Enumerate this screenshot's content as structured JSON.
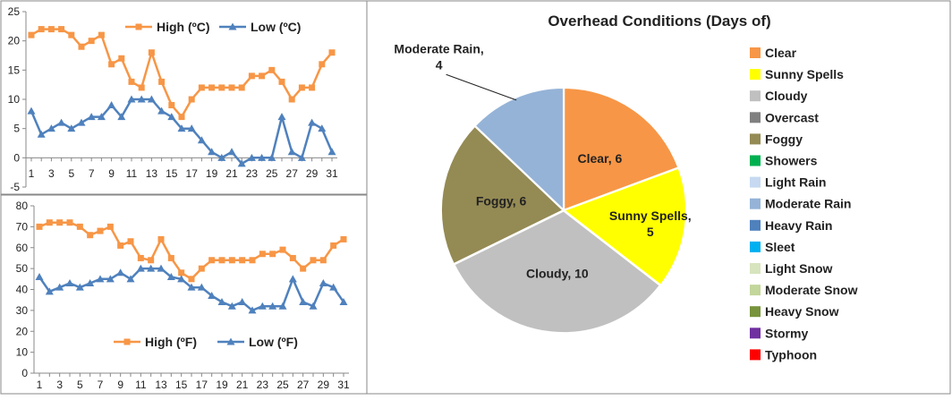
{
  "chart_data": [
    {
      "type": "line",
      "title": "",
      "xlabel": "",
      "ylabel": "",
      "x": [
        1,
        2,
        3,
        4,
        5,
        6,
        7,
        8,
        9,
        10,
        11,
        12,
        13,
        14,
        15,
        16,
        17,
        18,
        19,
        20,
        21,
        22,
        23,
        24,
        25,
        26,
        27,
        28,
        29,
        30,
        31
      ],
      "x_tick_labels": [
        "1",
        "3",
        "5",
        "7",
        "9",
        "11",
        "13",
        "15",
        "17",
        "19",
        "21",
        "23",
        "25",
        "27",
        "29",
        "31"
      ],
      "ylim": [
        -5,
        25
      ],
      "y_ticks": [
        -5,
        0,
        5,
        10,
        15,
        20,
        25
      ],
      "legend_position": "top",
      "series": [
        {
          "name": "High (ºC)",
          "color": "#F79646",
          "marker": "square",
          "values": [
            21,
            22,
            22,
            22,
            21,
            19,
            20,
            21,
            16,
            17,
            13,
            12,
            18,
            13,
            9,
            7,
            10,
            12,
            12,
            12,
            12,
            12,
            14,
            14,
            15,
            13,
            10,
            12,
            12,
            16,
            18
          ]
        },
        {
          "name": "Low (ºC)",
          "color": "#4F81BD",
          "marker": "triangle",
          "values": [
            8,
            4,
            5,
            6,
            5,
            6,
            7,
            7,
            9,
            7,
            10,
            10,
            10,
            8,
            7,
            5,
            5,
            3,
            1,
            0,
            1,
            -1,
            0,
            0,
            0,
            7,
            1,
            0,
            6,
            5,
            1
          ]
        }
      ]
    },
    {
      "type": "line",
      "title": "",
      "xlabel": "",
      "ylabel": "",
      "x": [
        1,
        2,
        3,
        4,
        5,
        6,
        7,
        8,
        9,
        10,
        11,
        12,
        13,
        14,
        15,
        16,
        17,
        18,
        19,
        20,
        21,
        22,
        23,
        24,
        25,
        26,
        27,
        28,
        29,
        30,
        31
      ],
      "x_tick_labels": [
        "1",
        "3",
        "5",
        "7",
        "9",
        "11",
        "13",
        "15",
        "17",
        "19",
        "21",
        "23",
        "25",
        "27",
        "29",
        "31"
      ],
      "ylim": [
        0,
        80
      ],
      "y_ticks": [
        0,
        10,
        20,
        30,
        40,
        50,
        60,
        70,
        80
      ],
      "legend_position": "bottom",
      "series": [
        {
          "name": "High (ºF)",
          "color": "#F79646",
          "marker": "square",
          "values": [
            70,
            72,
            72,
            72,
            70,
            66,
            68,
            70,
            61,
            63,
            55,
            54,
            64,
            55,
            48,
            45,
            50,
            54,
            54,
            54,
            54,
            54,
            57,
            57,
            59,
            55,
            50,
            54,
            54,
            61,
            64
          ]
        },
        {
          "name": "Low (ºF)",
          "color": "#4F81BD",
          "marker": "triangle",
          "values": [
            46,
            39,
            41,
            43,
            41,
            43,
            45,
            45,
            48,
            45,
            50,
            50,
            50,
            46,
            45,
            41,
            41,
            37,
            34,
            32,
            34,
            30,
            32,
            32,
            32,
            45,
            34,
            32,
            43,
            41,
            34
          ]
        }
      ]
    },
    {
      "type": "pie",
      "title": "Overhead Conditions (Days of)",
      "legend_position": "right",
      "slices": [
        {
          "label": "Clear",
          "value": 6,
          "color": "#F79646",
          "label_lines": [
            "Clear, 6"
          ]
        },
        {
          "label": "Sunny Spells",
          "value": 5,
          "color": "#FFFF00",
          "label_lines": [
            "Sunny Spells,",
            "5"
          ]
        },
        {
          "label": "Cloudy",
          "value": 10,
          "color": "#C0C0C0",
          "label_lines": [
            "Cloudy, 10"
          ]
        },
        {
          "label": "Foggy",
          "value": 6,
          "color": "#948A54",
          "label_lines": [
            "Foggy, 6"
          ]
        },
        {
          "label": "Moderate Rain",
          "value": 4,
          "color": "#95B3D7",
          "label_lines": [
            "Moderate Rain,",
            "4"
          ]
        }
      ],
      "legend": [
        {
          "label": "Clear",
          "color": "#F79646"
        },
        {
          "label": "Sunny Spells",
          "color": "#FFFF00"
        },
        {
          "label": "Cloudy",
          "color": "#C0C0C0"
        },
        {
          "label": "Overcast",
          "color": "#808080"
        },
        {
          "label": "Foggy",
          "color": "#948A54"
        },
        {
          "label": "Showers",
          "color": "#00B050"
        },
        {
          "label": "Light Rain",
          "color": "#C6D9F1"
        },
        {
          "label": "Moderate Rain",
          "color": "#95B3D7"
        },
        {
          "label": "Heavy Rain",
          "color": "#4F81BD"
        },
        {
          "label": "Sleet",
          "color": "#00B0F0"
        },
        {
          "label": "Light Snow",
          "color": "#D7E4BD"
        },
        {
          "label": "Moderate Snow",
          "color": "#C3D69B"
        },
        {
          "label": "Heavy Snow",
          "color": "#77933C"
        },
        {
          "label": "Stormy",
          "color": "#7030A0"
        },
        {
          "label": "Typhoon",
          "color": "#FF0000"
        }
      ]
    }
  ]
}
